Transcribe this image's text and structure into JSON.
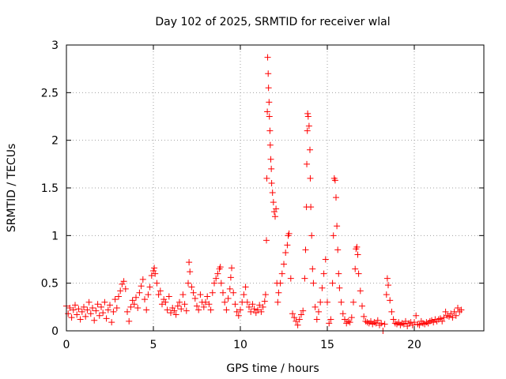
{
  "chart_data": {
    "type": "scatter",
    "title": "Day 102 of 2025, SRMTID for receiver wlal",
    "xlabel": "GPS time / hours",
    "ylabel": "SRMTID / TECUs",
    "xlim": [
      0,
      24
    ],
    "ylim": [
      0,
      3
    ],
    "xticks": [
      0,
      5,
      10,
      15,
      20
    ],
    "xtick_labels": [
      "0",
      "5",
      "10",
      "15",
      "20"
    ],
    "yticks": [
      0,
      0.5,
      1,
      1.5,
      2,
      2.5,
      3
    ],
    "ytick_labels": [
      "0",
      "0.5",
      "1",
      "1.5",
      "2",
      "2.5",
      "3"
    ],
    "grid": true,
    "marker": "+",
    "marker_color": "#ff0000",
    "series": [
      {
        "name": "SRMTID",
        "points": [
          [
            0.0,
            0.26
          ],
          [
            0.1,
            0.18
          ],
          [
            0.2,
            0.24
          ],
          [
            0.3,
            0.14
          ],
          [
            0.4,
            0.22
          ],
          [
            0.5,
            0.27
          ],
          [
            0.6,
            0.17
          ],
          [
            0.7,
            0.23
          ],
          [
            0.8,
            0.12
          ],
          [
            0.9,
            0.2
          ],
          [
            1.0,
            0.25
          ],
          [
            1.1,
            0.15
          ],
          [
            1.2,
            0.22
          ],
          [
            1.3,
            0.3
          ],
          [
            1.4,
            0.18
          ],
          [
            1.5,
            0.24
          ],
          [
            1.6,
            0.11
          ],
          [
            1.7,
            0.21
          ],
          [
            1.8,
            0.28
          ],
          [
            1.9,
            0.16
          ],
          [
            2.0,
            0.25
          ],
          [
            2.1,
            0.19
          ],
          [
            2.2,
            0.3
          ],
          [
            2.3,
            0.13
          ],
          [
            2.4,
            0.22
          ],
          [
            2.5,
            0.27
          ],
          [
            2.6,
            0.09
          ],
          [
            2.7,
            0.2
          ],
          [
            2.8,
            0.33
          ],
          [
            2.9,
            0.24
          ],
          [
            3.0,
            0.36
          ],
          [
            3.1,
            0.42
          ],
          [
            3.2,
            0.49
          ],
          [
            3.3,
            0.52
          ],
          [
            3.4,
            0.44
          ],
          [
            3.5,
            0.2
          ],
          [
            3.6,
            0.1
          ],
          [
            3.7,
            0.25
          ],
          [
            3.8,
            0.32
          ],
          [
            3.9,
            0.28
          ],
          [
            4.0,
            0.35
          ],
          [
            4.1,
            0.24
          ],
          [
            4.2,
            0.4
          ],
          [
            4.3,
            0.47
          ],
          [
            4.4,
            0.54
          ],
          [
            4.5,
            0.33
          ],
          [
            4.6,
            0.22
          ],
          [
            4.7,
            0.38
          ],
          [
            4.8,
            0.46
          ],
          [
            4.9,
            0.58
          ],
          [
            5.0,
            0.63
          ],
          [
            5.05,
            0.66
          ],
          [
            5.1,
            0.6
          ],
          [
            5.2,
            0.5
          ],
          [
            5.3,
            0.38
          ],
          [
            5.4,
            0.42
          ],
          [
            5.5,
            0.28
          ],
          [
            5.6,
            0.33
          ],
          [
            5.7,
            0.3
          ],
          [
            5.8,
            0.22
          ],
          [
            5.9,
            0.36
          ],
          [
            6.0,
            0.19
          ],
          [
            6.1,
            0.24
          ],
          [
            6.2,
            0.21
          ],
          [
            6.3,
            0.17
          ],
          [
            6.4,
            0.26
          ],
          [
            6.5,
            0.3
          ],
          [
            6.6,
            0.23
          ],
          [
            6.7,
            0.38
          ],
          [
            6.8,
            0.28
          ],
          [
            6.9,
            0.21
          ],
          [
            7.0,
            0.5
          ],
          [
            7.05,
            0.72
          ],
          [
            7.1,
            0.62
          ],
          [
            7.2,
            0.46
          ],
          [
            7.3,
            0.4
          ],
          [
            7.4,
            0.34
          ],
          [
            7.5,
            0.26
          ],
          [
            7.6,
            0.22
          ],
          [
            7.7,
            0.38
          ],
          [
            7.8,
            0.3
          ],
          [
            7.9,
            0.25
          ],
          [
            8.0,
            0.3
          ],
          [
            8.1,
            0.36
          ],
          [
            8.2,
            0.28
          ],
          [
            8.3,
            0.22
          ],
          [
            8.4,
            0.4
          ],
          [
            8.5,
            0.5
          ],
          [
            8.6,
            0.55
          ],
          [
            8.7,
            0.6
          ],
          [
            8.8,
            0.65
          ],
          [
            8.85,
            0.67
          ],
          [
            8.9,
            0.5
          ],
          [
            9.0,
            0.4
          ],
          [
            9.1,
            0.3
          ],
          [
            9.2,
            0.22
          ],
          [
            9.3,
            0.34
          ],
          [
            9.4,
            0.44
          ],
          [
            9.45,
            0.56
          ],
          [
            9.5,
            0.66
          ],
          [
            9.6,
            0.4
          ],
          [
            9.7,
            0.28
          ],
          [
            9.8,
            0.2
          ],
          [
            9.9,
            0.16
          ],
          [
            10.0,
            0.22
          ],
          [
            10.1,
            0.3
          ],
          [
            10.2,
            0.38
          ],
          [
            10.3,
            0.46
          ],
          [
            10.4,
            0.3
          ],
          [
            10.5,
            0.25
          ],
          [
            10.6,
            0.2
          ],
          [
            10.7,
            0.28
          ],
          [
            10.8,
            0.23
          ],
          [
            10.9,
            0.19
          ],
          [
            11.0,
            0.22
          ],
          [
            11.1,
            0.27
          ],
          [
            11.2,
            0.2
          ],
          [
            11.3,
            0.25
          ],
          [
            11.4,
            0.31
          ],
          [
            11.45,
            0.38
          ],
          [
            11.5,
            0.95
          ],
          [
            11.52,
            1.6
          ],
          [
            11.55,
            2.3
          ],
          [
            11.57,
            2.87
          ],
          [
            11.6,
            2.7
          ],
          [
            11.62,
            2.55
          ],
          [
            11.65,
            2.4
          ],
          [
            11.67,
            2.25
          ],
          [
            11.7,
            2.1
          ],
          [
            11.72,
            1.95
          ],
          [
            11.75,
            1.8
          ],
          [
            11.78,
            1.7
          ],
          [
            11.8,
            1.55
          ],
          [
            11.85,
            1.45
          ],
          [
            11.9,
            1.35
          ],
          [
            11.95,
            1.25
          ],
          [
            12.0,
            1.2
          ],
          [
            12.05,
            1.28
          ],
          [
            12.1,
            0.5
          ],
          [
            12.15,
            0.3
          ],
          [
            12.2,
            0.4
          ],
          [
            12.3,
            0.5
          ],
          [
            12.4,
            0.6
          ],
          [
            12.5,
            0.7
          ],
          [
            12.6,
            0.82
          ],
          [
            12.7,
            0.9
          ],
          [
            12.75,
            1.0
          ],
          [
            12.8,
            1.02
          ],
          [
            12.9,
            0.55
          ],
          [
            13.0,
            0.18
          ],
          [
            13.1,
            0.14
          ],
          [
            13.2,
            0.1
          ],
          [
            13.3,
            0.06
          ],
          [
            13.4,
            0.12
          ],
          [
            13.5,
            0.17
          ],
          [
            13.6,
            0.21
          ],
          [
            13.7,
            0.55
          ],
          [
            13.75,
            0.85
          ],
          [
            13.8,
            1.3
          ],
          [
            13.82,
            1.75
          ],
          [
            13.85,
            2.1
          ],
          [
            13.87,
            2.28
          ],
          [
            13.9,
            2.25
          ],
          [
            13.95,
            2.15
          ],
          [
            14.0,
            1.9
          ],
          [
            14.02,
            1.6
          ],
          [
            14.05,
            1.3
          ],
          [
            14.1,
            1.0
          ],
          [
            14.15,
            0.65
          ],
          [
            14.2,
            0.5
          ],
          [
            14.3,
            0.25
          ],
          [
            14.4,
            0.12
          ],
          [
            14.5,
            0.2
          ],
          [
            14.6,
            0.3
          ],
          [
            14.7,
            0.45
          ],
          [
            14.8,
            0.6
          ],
          [
            14.9,
            0.75
          ],
          [
            15.0,
            0.3
          ],
          [
            15.1,
            0.08
          ],
          [
            15.2,
            0.12
          ],
          [
            15.3,
            0.5
          ],
          [
            15.35,
            1.0
          ],
          [
            15.4,
            1.6
          ],
          [
            15.45,
            1.58
          ],
          [
            15.5,
            1.4
          ],
          [
            15.55,
            1.1
          ],
          [
            15.6,
            0.85
          ],
          [
            15.65,
            0.6
          ],
          [
            15.7,
            0.45
          ],
          [
            15.8,
            0.3
          ],
          [
            15.9,
            0.18
          ],
          [
            16.0,
            0.12
          ],
          [
            16.1,
            0.08
          ],
          [
            16.2,
            0.1
          ],
          [
            16.3,
            0.09
          ],
          [
            16.4,
            0.14
          ],
          [
            16.5,
            0.3
          ],
          [
            16.6,
            0.65
          ],
          [
            16.65,
            0.86
          ],
          [
            16.7,
            0.88
          ],
          [
            16.75,
            0.8
          ],
          [
            16.8,
            0.6
          ],
          [
            16.9,
            0.42
          ],
          [
            17.0,
            0.26
          ],
          [
            17.1,
            0.15
          ],
          [
            17.2,
            0.1
          ],
          [
            17.3,
            0.09
          ],
          [
            17.4,
            0.08
          ],
          [
            17.5,
            0.1
          ],
          [
            17.6,
            0.07
          ],
          [
            17.7,
            0.09
          ],
          [
            17.8,
            0.08
          ],
          [
            17.9,
            0.11
          ],
          [
            18.0,
            0.06
          ],
          [
            18.1,
            0.08
          ],
          [
            18.2,
            0.0
          ],
          [
            18.3,
            0.07
          ],
          [
            18.4,
            0.38
          ],
          [
            18.45,
            0.55
          ],
          [
            18.5,
            0.48
          ],
          [
            18.6,
            0.32
          ],
          [
            18.7,
            0.2
          ],
          [
            18.8,
            0.12
          ],
          [
            18.9,
            0.08
          ],
          [
            19.0,
            0.07
          ],
          [
            19.1,
            0.09
          ],
          [
            19.2,
            0.06
          ],
          [
            19.3,
            0.08
          ],
          [
            19.4,
            0.07
          ],
          [
            19.5,
            0.1
          ],
          [
            19.6,
            0.05
          ],
          [
            19.7,
            0.08
          ],
          [
            19.8,
            0.09
          ],
          [
            19.9,
            0.06
          ],
          [
            20.0,
            0.09
          ],
          [
            20.1,
            0.16
          ],
          [
            20.2,
            0.07
          ],
          [
            20.3,
            0.06
          ],
          [
            20.4,
            0.1
          ],
          [
            20.5,
            0.08
          ],
          [
            20.6,
            0.07
          ],
          [
            20.7,
            0.09
          ],
          [
            20.8,
            0.08
          ],
          [
            20.9,
            0.1
          ],
          [
            21.0,
            0.11
          ],
          [
            21.1,
            0.09
          ],
          [
            21.2,
            0.12
          ],
          [
            21.3,
            0.1
          ],
          [
            21.4,
            0.12
          ],
          [
            21.5,
            0.13
          ],
          [
            21.6,
            0.1
          ],
          [
            21.7,
            0.14
          ],
          [
            21.8,
            0.2
          ],
          [
            21.9,
            0.16
          ],
          [
            22.0,
            0.15
          ],
          [
            22.1,
            0.18
          ],
          [
            22.2,
            0.14
          ],
          [
            22.3,
            0.2
          ],
          [
            22.4,
            0.16
          ],
          [
            22.5,
            0.24
          ],
          [
            22.6,
            0.2
          ],
          [
            22.7,
            0.22
          ]
        ]
      }
    ]
  }
}
